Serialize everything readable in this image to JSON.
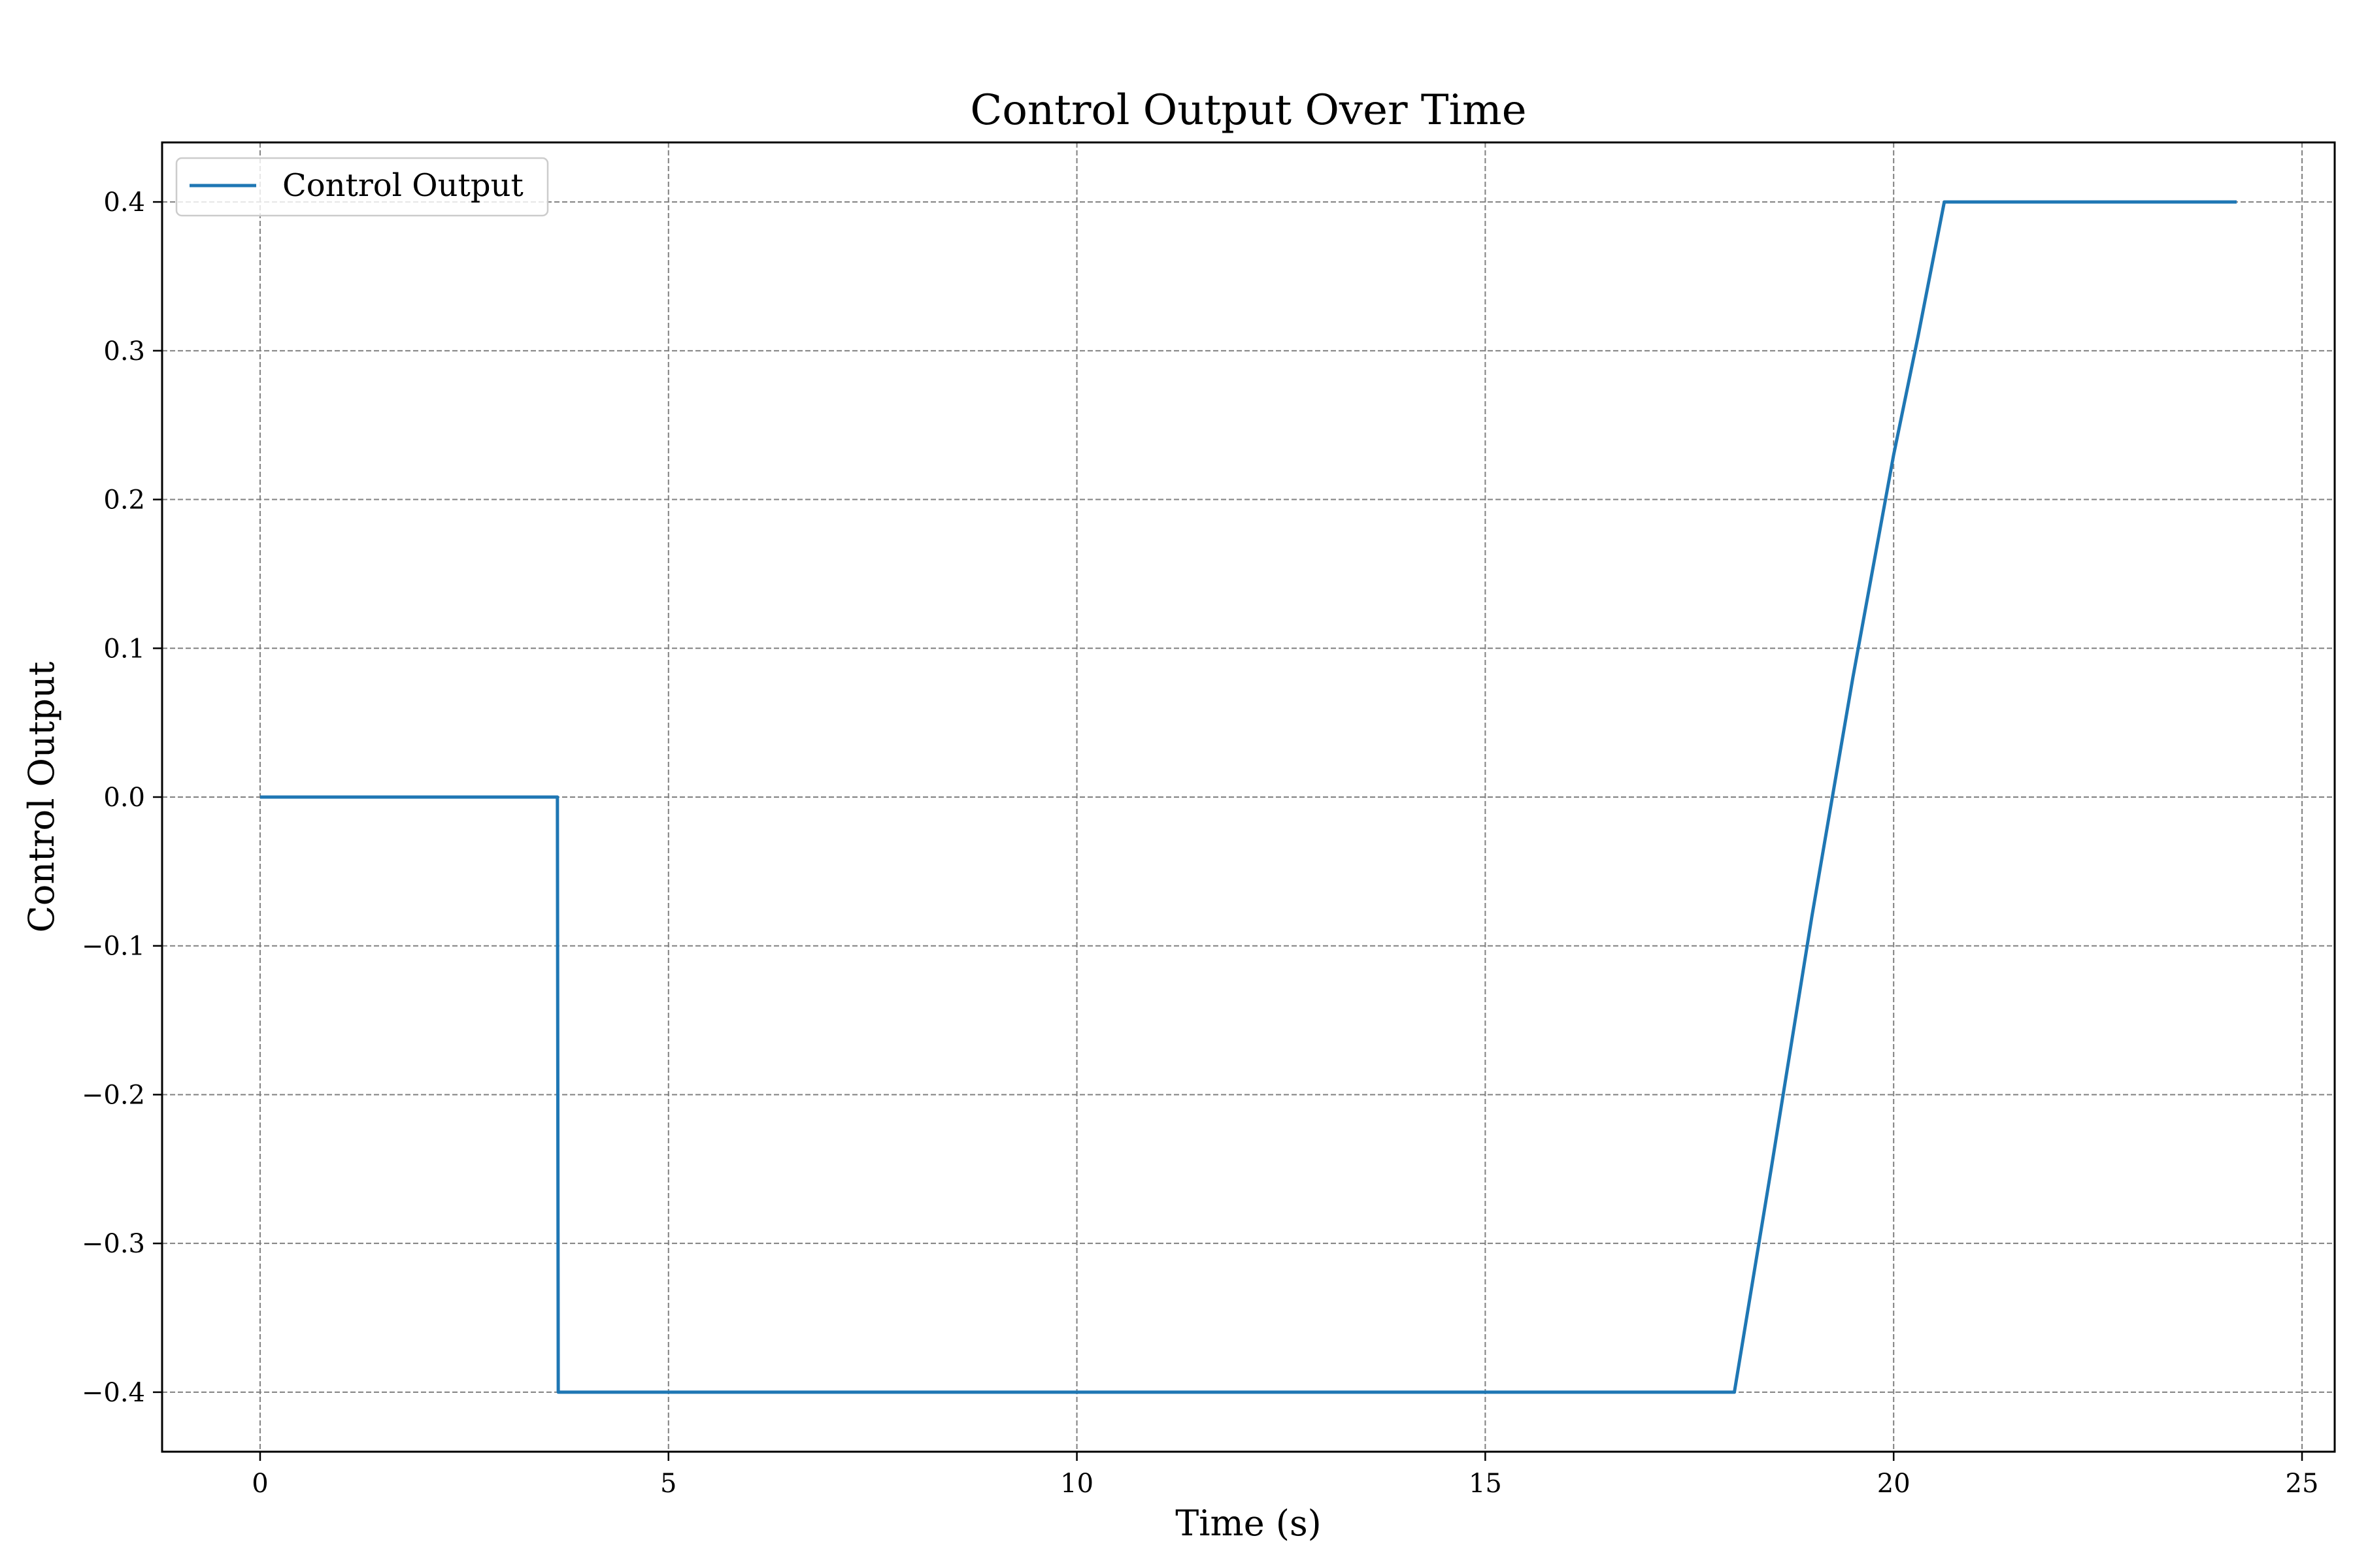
{
  "chart_data": {
    "type": "line",
    "title": "Control Output Over Time",
    "xlabel": "Time (s)",
    "ylabel": "Control Output",
    "xlim": [
      -1.2,
      25.4
    ],
    "ylim": [
      -0.44,
      0.44
    ],
    "xticks": [
      0,
      5,
      10,
      15,
      20,
      25
    ],
    "xtick_labels": [
      "0",
      "5",
      "10",
      "15",
      "20",
      "25"
    ],
    "yticks": [
      -0.4,
      -0.3,
      -0.2,
      -0.1,
      0.0,
      0.1,
      0.2,
      0.3,
      0.4
    ],
    "ytick_labels": [
      "−0.4",
      "−0.3",
      "−0.2",
      "−0.1",
      "0.0",
      "0.1",
      "0.2",
      "0.3",
      "0.4"
    ],
    "grid": true,
    "legend_position": "top-left",
    "series": [
      {
        "name": "Control Output",
        "color": "#1f77b4",
        "x": [
          0,
          3.64,
          3.65,
          18.05,
          18.5,
          19.0,
          19.5,
          20.0,
          20.3,
          20.62,
          24.2
        ],
        "y": [
          0.0,
          0.0,
          -0.4,
          -0.4,
          -0.25,
          -0.08,
          0.08,
          0.23,
          0.31,
          0.4,
          0.4
        ]
      }
    ]
  }
}
